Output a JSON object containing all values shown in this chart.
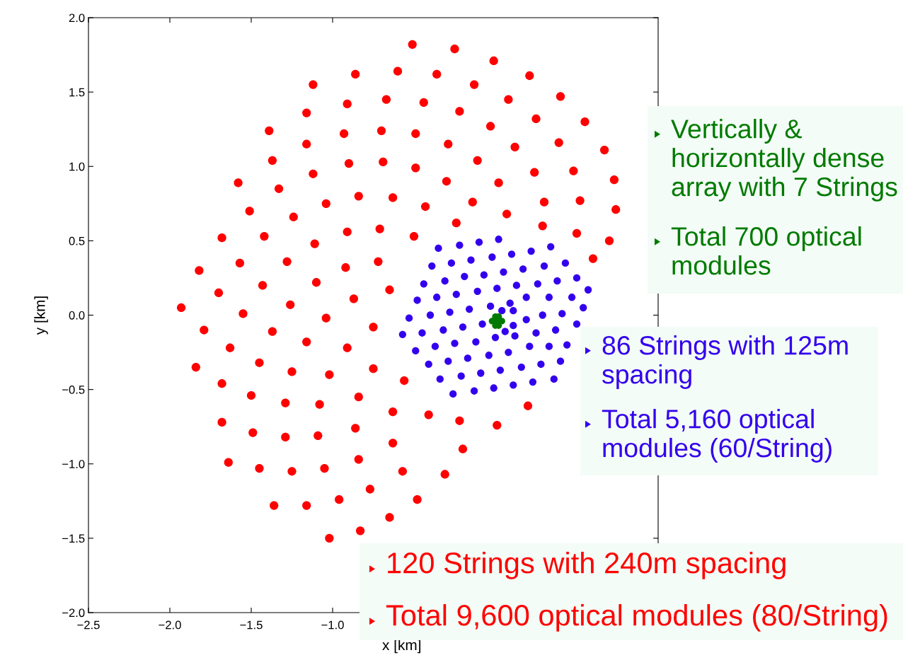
{
  "chart_data": {
    "type": "scatter",
    "xlabel": "x [km]",
    "ylabel": "y [km]",
    "xlim": [
      -2.5,
      1.0
    ],
    "ylim": [
      -2.0,
      2.0
    ],
    "xticks": [
      {
        "value": -2.5,
        "label": "−2.5"
      },
      {
        "value": -2.0,
        "label": "−2.0"
      },
      {
        "value": -1.5,
        "label": "−1.5"
      },
      {
        "value": -1.0,
        "label": "−1.0"
      }
    ],
    "yticks": [
      {
        "value": -2.0,
        "label": "−2.0"
      },
      {
        "value": -1.5,
        "label": "−1.5"
      },
      {
        "value": -1.0,
        "label": "−1.0"
      },
      {
        "value": -0.5,
        "label": "−0.5"
      },
      {
        "value": 0.0,
        "label": "0.0"
      },
      {
        "value": 0.5,
        "label": "0.5"
      },
      {
        "value": 1.0,
        "label": "1.0"
      },
      {
        "value": 1.5,
        "label": "1.5"
      },
      {
        "value": 2.0,
        "label": "2.0"
      }
    ],
    "grid": false,
    "legend": false,
    "marker": "circle",
    "series": [
      {
        "color": "#ff0000",
        "x": [
          -0.51,
          -0.6,
          -0.86,
          -1.12,
          -0.67,
          -0.91,
          -1.16,
          -1.39,
          -0.7,
          -0.93,
          -0.49,
          -1.16,
          -1.37,
          -0.69,
          -0.9,
          -0.49,
          -1.12,
          -1.58,
          -1.33,
          -0.84,
          -0.63,
          -1.04,
          -1.51,
          -1.24,
          -1.68,
          -1.42,
          -0.91,
          -0.71,
          -0.5,
          -1.11,
          -1.82,
          -1.57,
          -1.28,
          -0.92,
          -0.72,
          -1.43,
          -1.1,
          -0.65,
          -1.7,
          -0.87,
          -0.25,
          -0.01,
          -0.36,
          -0.13,
          0.21,
          -0.44,
          -0.22,
          0.08,
          0.4,
          -0.29,
          -0.03,
          0.25,
          0.55,
          -0.11,
          0.12,
          0.39,
          0.67,
          -0.3,
          0.02,
          0.24,
          0.48,
          0.73,
          -0.43,
          -0.14,
          0.07,
          0.3,
          0.52,
          0.74,
          -0.24,
          0.29,
          0.5,
          0.7,
          0.6,
          -1.93,
          -1.26,
          -1.55,
          -1.04,
          -0.75,
          -1.79,
          -1.37,
          -1.16,
          -0.91,
          -1.63,
          -1.45,
          -1.84,
          -1.25,
          -1.02,
          -0.75,
          -0.56,
          -1.68,
          -1.5,
          -1.29,
          -1.08,
          -0.84,
          -0.63,
          -1.68,
          -1.49,
          -1.29,
          -1.09,
          -0.86,
          -0.63,
          -1.64,
          -1.45,
          -1.25,
          -1.05,
          -0.84,
          -0.57,
          -0.77,
          -0.48,
          -1.36,
          -1.16,
          -0.96,
          -0.65,
          -0.83,
          -1.02,
          0.2,
          -0.41,
          -0.22,
          0.01,
          -0.2,
          -0.31
        ],
        "values": [
          1.82,
          1.64,
          1.62,
          1.55,
          1.45,
          1.42,
          1.36,
          1.24,
          1.24,
          1.22,
          1.22,
          1.15,
          1.04,
          1.03,
          1.02,
          0.99,
          0.95,
          0.89,
          0.85,
          0.8,
          0.79,
          0.75,
          0.7,
          0.66,
          0.52,
          0.53,
          0.56,
          0.58,
          0.53,
          0.48,
          0.3,
          0.35,
          0.36,
          0.32,
          0.36,
          0.2,
          0.22,
          0.17,
          0.15,
          0.11,
          1.79,
          1.71,
          1.62,
          1.55,
          1.61,
          1.43,
          1.37,
          1.45,
          1.47,
          1.15,
          1.27,
          1.32,
          1.3,
          1.04,
          1.13,
          1.16,
          1.11,
          0.9,
          0.89,
          0.96,
          0.97,
          0.91,
          0.73,
          0.76,
          0.68,
          0.76,
          0.77,
          0.71,
          0.62,
          0.6,
          0.55,
          0.5,
          0.38,
          0.05,
          0.07,
          0.01,
          -0.02,
          -0.08,
          -0.1,
          -0.11,
          -0.18,
          -0.22,
          -0.22,
          -0.32,
          -0.35,
          -0.38,
          -0.4,
          -0.36,
          -0.44,
          -0.46,
          -0.54,
          -0.59,
          -0.6,
          -0.55,
          -0.65,
          -0.72,
          -0.79,
          -0.82,
          -0.81,
          -0.76,
          -0.86,
          -0.99,
          -1.03,
          -1.05,
          -1.03,
          -0.97,
          -1.05,
          -1.17,
          -1.24,
          -1.28,
          -1.28,
          -1.24,
          -1.36,
          -1.45,
          -1.5,
          -0.61,
          -0.67,
          -0.71,
          -0.74,
          -0.9,
          -1.07
        ]
      },
      {
        "color": "#3300ee",
        "x": [
          -0.35,
          -0.22,
          -0.1,
          0.02,
          0.1,
          0.22,
          0.34,
          -0.39,
          -0.27,
          -0.15,
          -0.02,
          0.05,
          0.17,
          0.3,
          0.43,
          -0.44,
          -0.31,
          -0.19,
          -0.07,
          0.01,
          0.13,
          0.26,
          0.38,
          0.5,
          0.57,
          -0.48,
          -0.36,
          -0.24,
          -0.11,
          -0.03,
          0.09,
          0.19,
          0.33,
          0.47,
          0.54,
          -0.53,
          -0.4,
          -0.28,
          -0.16,
          -0.08,
          0.04,
          0.11,
          0.11,
          0.19,
          0.29,
          0.41,
          0.5,
          -0.57,
          -0.45,
          -0.32,
          -0.2,
          0.0,
          0.06,
          0.12,
          0.25,
          0.37,
          -0.49,
          -0.37,
          -0.25,
          -0.12,
          -0.04,
          0.08,
          0.21,
          0.33,
          0.44,
          -0.41,
          -0.29,
          -0.17,
          -0.09,
          0.03,
          0.16,
          0.28,
          0.4,
          -0.34,
          -0.21,
          -0.01,
          0.11,
          0.23,
          0.36,
          -0.26,
          -0.13
        ],
        "values": [
          0.45,
          0.47,
          0.49,
          0.51,
          0.41,
          0.43,
          0.46,
          0.33,
          0.35,
          0.37,
          0.39,
          0.29,
          0.31,
          0.33,
          0.35,
          0.21,
          0.23,
          0.26,
          0.27,
          0.18,
          0.2,
          0.21,
          0.23,
          0.25,
          0.17,
          0.1,
          0.12,
          0.14,
          0.16,
          0.06,
          0.08,
          0.12,
          0.12,
          0.12,
          0.05,
          -0.02,
          0.0,
          0.02,
          0.04,
          -0.06,
          0.03,
          0.03,
          -0.07,
          -0.03,
          0.0,
          0.01,
          -0.06,
          -0.13,
          -0.12,
          -0.1,
          -0.08,
          -0.15,
          -0.11,
          -0.14,
          -0.12,
          -0.1,
          -0.24,
          -0.21,
          -0.19,
          -0.18,
          -0.27,
          -0.25,
          -0.21,
          -0.21,
          -0.2,
          -0.33,
          -0.31,
          -0.29,
          -0.39,
          -0.37,
          -0.35,
          -0.33,
          -0.31,
          -0.43,
          -0.41,
          -0.49,
          -0.47,
          -0.45,
          -0.43,
          -0.53,
          -0.51
        ]
      },
      {
        "color": "#007a00",
        "x": [
          0.04,
          -0.02,
          0.02,
          0.0,
          0.02,
          0.0,
          0.01
        ],
        "values": [
          -0.04,
          -0.04,
          -0.01,
          -0.01,
          -0.07,
          -0.07,
          -0.04
        ]
      }
    ],
    "annotations": [
      "Vertically &\nhorizontally dense\narray with 7 Strings",
      "Total 700 optical\nmodules",
      "86 Strings with 125m\nspacing",
      "Total 5,160 optical\nmodules (60/String)",
      "120 Strings with 240m spacing",
      "Total 9,600 optical modules (80/String)"
    ]
  }
}
